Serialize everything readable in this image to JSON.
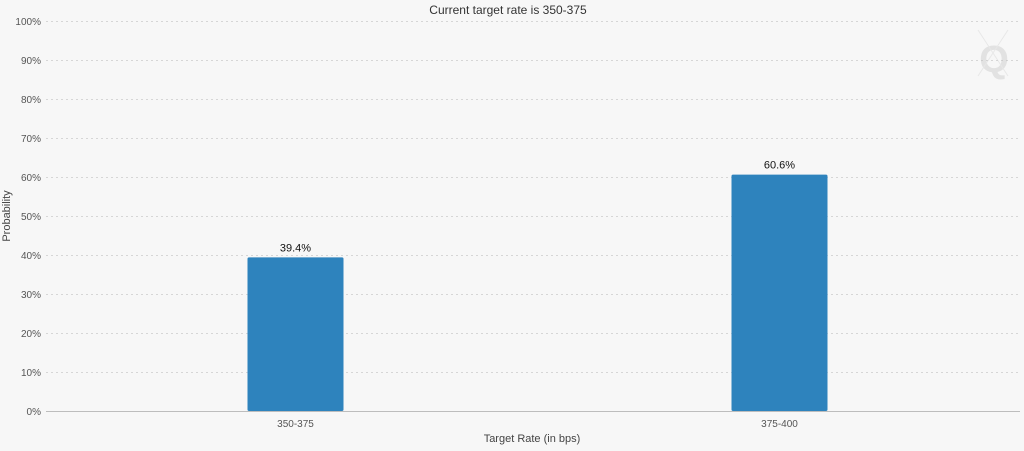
{
  "chart_data": {
    "type": "bar",
    "title": "Current target rate is 350-375",
    "xlabel": "Target Rate (in bps)",
    "ylabel": "Probability",
    "categories": [
      "350-375",
      "375-400"
    ],
    "values": [
      39.4,
      60.6
    ],
    "data_labels": [
      "39.4%",
      "60.6%"
    ],
    "ylim": [
      0,
      100
    ],
    "yticks": [
      0,
      10,
      20,
      30,
      40,
      50,
      60,
      70,
      80,
      90,
      100
    ],
    "ytick_labels": [
      "0%",
      "10%",
      "20%",
      "30%",
      "40%",
      "50%",
      "60%",
      "70%",
      "80%",
      "90%",
      "100%"
    ],
    "grid": true,
    "legend": "none",
    "bar_color": "#2e83bd",
    "background_color": "#f7f7f7"
  },
  "watermark": {
    "text": "Q"
  }
}
